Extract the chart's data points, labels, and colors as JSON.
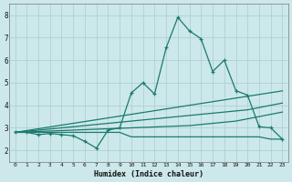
{
  "x": [
    0,
    1,
    2,
    3,
    4,
    5,
    6,
    7,
    8,
    9,
    10,
    11,
    12,
    13,
    14,
    15,
    16,
    17,
    18,
    19,
    20,
    21,
    22,
    23
  ],
  "series_main": [
    2.8,
    2.8,
    2.7,
    2.75,
    2.7,
    2.65,
    2.4,
    2.1,
    2.9,
    3.0,
    4.55,
    5.0,
    4.5,
    6.55,
    7.9,
    7.3,
    6.95,
    5.5,
    6.0,
    4.65,
    4.45,
    3.05,
    3.0,
    2.5
  ],
  "series_line1": [
    2.8,
    2.88,
    2.96,
    3.04,
    3.12,
    3.2,
    3.28,
    3.36,
    3.44,
    3.52,
    3.6,
    3.68,
    3.76,
    3.84,
    3.92,
    4.0,
    4.08,
    4.16,
    4.24,
    4.32,
    4.4,
    4.48,
    4.56,
    4.64
  ],
  "series_line2": [
    2.8,
    2.85,
    2.9,
    2.95,
    3.0,
    3.05,
    3.1,
    3.15,
    3.2,
    3.25,
    3.3,
    3.35,
    3.4,
    3.45,
    3.5,
    3.55,
    3.6,
    3.65,
    3.7,
    3.75,
    3.8,
    3.9,
    4.0,
    4.1
  ],
  "series_line3": [
    2.8,
    2.82,
    2.84,
    2.86,
    2.88,
    2.9,
    2.92,
    2.94,
    2.96,
    2.98,
    3.0,
    3.02,
    3.04,
    3.06,
    3.08,
    3.1,
    3.15,
    3.2,
    3.25,
    3.3,
    3.4,
    3.5,
    3.6,
    3.7
  ],
  "series_flat": [
    2.8,
    2.8,
    2.8,
    2.8,
    2.8,
    2.8,
    2.8,
    2.8,
    2.8,
    2.8,
    2.6,
    2.6,
    2.6,
    2.6,
    2.6,
    2.6,
    2.6,
    2.6,
    2.6,
    2.6,
    2.6,
    2.6,
    2.5,
    2.5
  ],
  "line_color": "#1a7a6e",
  "bg_color": "#cce8ea",
  "grid_color": "#aacccc",
  "xlabel": "Humidex (Indice chaleur)",
  "ylim": [
    1.5,
    8.5
  ],
  "xlim": [
    -0.5,
    23.5
  ],
  "yticks": [
    2,
    3,
    4,
    5,
    6,
    7,
    8
  ]
}
